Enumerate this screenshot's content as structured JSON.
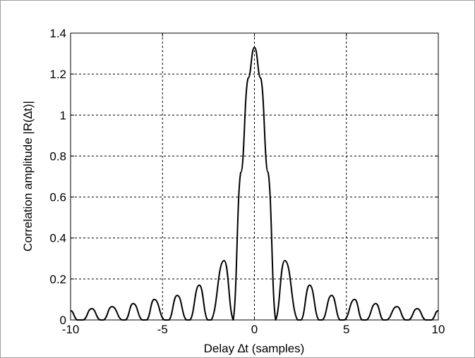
{
  "chart_data": {
    "type": "line",
    "title": "",
    "xlabel": "Delay ∆t (samples)",
    "ylabel": "Correlation amplitude |R(∆t)|",
    "xlim": [
      -10,
      10
    ],
    "ylim": [
      0,
      1.4
    ],
    "xticks": [
      -10,
      -5,
      0,
      5,
      10
    ],
    "yticks": [
      0,
      0.2,
      0.4,
      0.6,
      0.8,
      1,
      1.2,
      1.4
    ],
    "xtick_labels": [
      "-10",
      "-5",
      "0",
      "5",
      "10"
    ],
    "ytick_labels": [
      "0",
      "0.2",
      "0.4",
      "0.6",
      "0.8",
      "1",
      "1.2",
      "1.4"
    ],
    "grid": true,
    "series": [
      {
        "color": "#000000",
        "x": [
          -10,
          -9.64,
          -9.3,
          -8.85,
          -8.4,
          -8.2,
          -7.75,
          -7.2,
          -7.0,
          -6.6,
          -6.1,
          -5.85,
          -5.45,
          -4.9,
          -4.65,
          -4.2,
          -3.7,
          -3.5,
          -3.0,
          -2.55,
          -2.35,
          -1.65,
          -1.15,
          -0.75,
          -0.35,
          0,
          0.35,
          0.75,
          1.15,
          1.65,
          2.35,
          2.55,
          3.0,
          3.5,
          3.7,
          4.2,
          4.65,
          4.9,
          5.45,
          5.85,
          6.1,
          6.6,
          7.0,
          7.2,
          7.75,
          8.2,
          8.4,
          8.85,
          9.3,
          9.64,
          10
        ],
        "y": [
          0.045,
          0.0,
          0.0,
          0.055,
          0.0,
          0.0,
          0.065,
          0.0,
          0.0,
          0.08,
          0.0,
          0.0,
          0.1,
          0.0,
          0.0,
          0.12,
          0.0,
          0.0,
          0.17,
          0.0,
          0.0,
          0.29,
          0.0,
          0.72,
          1.18,
          1.33,
          1.18,
          0.72,
          0.0,
          0.29,
          0.0,
          0.0,
          0.17,
          0.0,
          0.0,
          0.12,
          0.0,
          0.0,
          0.1,
          0.0,
          0.0,
          0.08,
          0.0,
          0.0,
          0.065,
          0.0,
          0.0,
          0.055,
          0.0,
          0.0,
          0.045
        ]
      }
    ]
  }
}
